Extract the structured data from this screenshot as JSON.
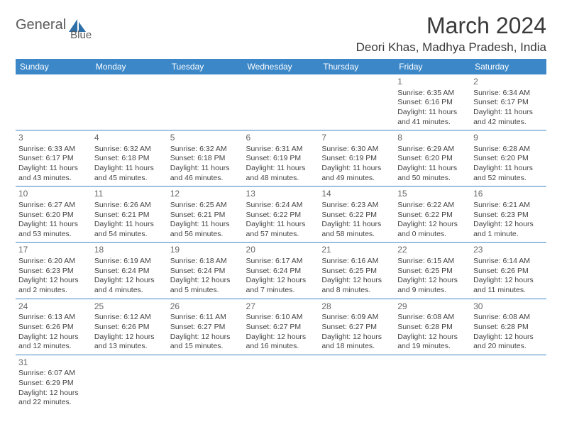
{
  "brand": {
    "part1": "General",
    "part2": "Blue"
  },
  "month_title": "March 2024",
  "location": "Deori Khas, Madhya Pradesh, India",
  "colors": {
    "header_bg": "#3b87c8",
    "header_text": "#ffffff",
    "border": "#3b87c8",
    "text": "#444444",
    "title_text": "#3a3a3a",
    "logo_text": "#5a5a5a",
    "logo_triangle": "#2f6fa8"
  },
  "typography": {
    "title_fontsize": 32,
    "location_fontsize": 17,
    "header_fontsize": 12,
    "cell_fontsize": 10.5,
    "daynum_fontsize": 12
  },
  "weekday_headers": [
    "Sunday",
    "Monday",
    "Tuesday",
    "Wednesday",
    "Thursday",
    "Friday",
    "Saturday"
  ],
  "grid": [
    [
      null,
      null,
      null,
      null,
      null,
      {
        "d": "1",
        "sr": "Sunrise: 6:35 AM",
        "ss": "Sunset: 6:16 PM",
        "dl": "Daylight: 11 hours and 41 minutes."
      },
      {
        "d": "2",
        "sr": "Sunrise: 6:34 AM",
        "ss": "Sunset: 6:17 PM",
        "dl": "Daylight: 11 hours and 42 minutes."
      }
    ],
    [
      {
        "d": "3",
        "sr": "Sunrise: 6:33 AM",
        "ss": "Sunset: 6:17 PM",
        "dl": "Daylight: 11 hours and 43 minutes."
      },
      {
        "d": "4",
        "sr": "Sunrise: 6:32 AM",
        "ss": "Sunset: 6:18 PM",
        "dl": "Daylight: 11 hours and 45 minutes."
      },
      {
        "d": "5",
        "sr": "Sunrise: 6:32 AM",
        "ss": "Sunset: 6:18 PM",
        "dl": "Daylight: 11 hours and 46 minutes."
      },
      {
        "d": "6",
        "sr": "Sunrise: 6:31 AM",
        "ss": "Sunset: 6:19 PM",
        "dl": "Daylight: 11 hours and 48 minutes."
      },
      {
        "d": "7",
        "sr": "Sunrise: 6:30 AM",
        "ss": "Sunset: 6:19 PM",
        "dl": "Daylight: 11 hours and 49 minutes."
      },
      {
        "d": "8",
        "sr": "Sunrise: 6:29 AM",
        "ss": "Sunset: 6:20 PM",
        "dl": "Daylight: 11 hours and 50 minutes."
      },
      {
        "d": "9",
        "sr": "Sunrise: 6:28 AM",
        "ss": "Sunset: 6:20 PM",
        "dl": "Daylight: 11 hours and 52 minutes."
      }
    ],
    [
      {
        "d": "10",
        "sr": "Sunrise: 6:27 AM",
        "ss": "Sunset: 6:20 PM",
        "dl": "Daylight: 11 hours and 53 minutes."
      },
      {
        "d": "11",
        "sr": "Sunrise: 6:26 AM",
        "ss": "Sunset: 6:21 PM",
        "dl": "Daylight: 11 hours and 54 minutes."
      },
      {
        "d": "12",
        "sr": "Sunrise: 6:25 AM",
        "ss": "Sunset: 6:21 PM",
        "dl": "Daylight: 11 hours and 56 minutes."
      },
      {
        "d": "13",
        "sr": "Sunrise: 6:24 AM",
        "ss": "Sunset: 6:22 PM",
        "dl": "Daylight: 11 hours and 57 minutes."
      },
      {
        "d": "14",
        "sr": "Sunrise: 6:23 AM",
        "ss": "Sunset: 6:22 PM",
        "dl": "Daylight: 11 hours and 58 minutes."
      },
      {
        "d": "15",
        "sr": "Sunrise: 6:22 AM",
        "ss": "Sunset: 6:22 PM",
        "dl": "Daylight: 12 hours and 0 minutes."
      },
      {
        "d": "16",
        "sr": "Sunrise: 6:21 AM",
        "ss": "Sunset: 6:23 PM",
        "dl": "Daylight: 12 hours and 1 minute."
      }
    ],
    [
      {
        "d": "17",
        "sr": "Sunrise: 6:20 AM",
        "ss": "Sunset: 6:23 PM",
        "dl": "Daylight: 12 hours and 2 minutes."
      },
      {
        "d": "18",
        "sr": "Sunrise: 6:19 AM",
        "ss": "Sunset: 6:24 PM",
        "dl": "Daylight: 12 hours and 4 minutes."
      },
      {
        "d": "19",
        "sr": "Sunrise: 6:18 AM",
        "ss": "Sunset: 6:24 PM",
        "dl": "Daylight: 12 hours and 5 minutes."
      },
      {
        "d": "20",
        "sr": "Sunrise: 6:17 AM",
        "ss": "Sunset: 6:24 PM",
        "dl": "Daylight: 12 hours and 7 minutes."
      },
      {
        "d": "21",
        "sr": "Sunrise: 6:16 AM",
        "ss": "Sunset: 6:25 PM",
        "dl": "Daylight: 12 hours and 8 minutes."
      },
      {
        "d": "22",
        "sr": "Sunrise: 6:15 AM",
        "ss": "Sunset: 6:25 PM",
        "dl": "Daylight: 12 hours and 9 minutes."
      },
      {
        "d": "23",
        "sr": "Sunrise: 6:14 AM",
        "ss": "Sunset: 6:26 PM",
        "dl": "Daylight: 12 hours and 11 minutes."
      }
    ],
    [
      {
        "d": "24",
        "sr": "Sunrise: 6:13 AM",
        "ss": "Sunset: 6:26 PM",
        "dl": "Daylight: 12 hours and 12 minutes."
      },
      {
        "d": "25",
        "sr": "Sunrise: 6:12 AM",
        "ss": "Sunset: 6:26 PM",
        "dl": "Daylight: 12 hours and 13 minutes."
      },
      {
        "d": "26",
        "sr": "Sunrise: 6:11 AM",
        "ss": "Sunset: 6:27 PM",
        "dl": "Daylight: 12 hours and 15 minutes."
      },
      {
        "d": "27",
        "sr": "Sunrise: 6:10 AM",
        "ss": "Sunset: 6:27 PM",
        "dl": "Daylight: 12 hours and 16 minutes."
      },
      {
        "d": "28",
        "sr": "Sunrise: 6:09 AM",
        "ss": "Sunset: 6:27 PM",
        "dl": "Daylight: 12 hours and 18 minutes."
      },
      {
        "d": "29",
        "sr": "Sunrise: 6:08 AM",
        "ss": "Sunset: 6:28 PM",
        "dl": "Daylight: 12 hours and 19 minutes."
      },
      {
        "d": "30",
        "sr": "Sunrise: 6:08 AM",
        "ss": "Sunset: 6:28 PM",
        "dl": "Daylight: 12 hours and 20 minutes."
      }
    ],
    [
      {
        "d": "31",
        "sr": "Sunrise: 6:07 AM",
        "ss": "Sunset: 6:29 PM",
        "dl": "Daylight: 12 hours and 22 minutes."
      },
      null,
      null,
      null,
      null,
      null,
      null
    ]
  ]
}
